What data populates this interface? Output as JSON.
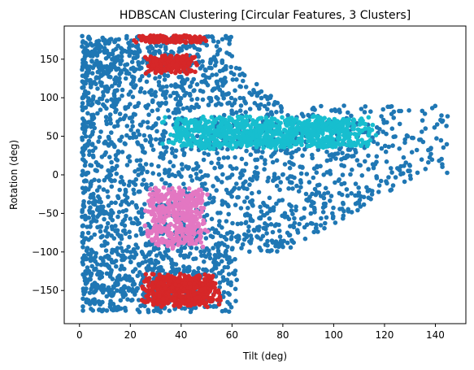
{
  "chart_data": {
    "type": "scatter",
    "title": "HDBSCAN Clustering [Circular Features, 3 Clusters]",
    "xlabel": "Tilt (deg)",
    "ylabel": "Rotation (deg)",
    "xlim": [
      -6,
      152
    ],
    "ylim": [
      -193,
      193
    ],
    "xticks": [
      0,
      20,
      40,
      60,
      80,
      100,
      120,
      140
    ],
    "yticks": [
      -150,
      -100,
      -50,
      0,
      50,
      100,
      150
    ],
    "xtick_labels": [
      "0",
      "20",
      "40",
      "60",
      "80",
      "100",
      "120",
      "140"
    ],
    "ytick_labels": [
      "−150",
      "−100",
      "−50",
      "0",
      "50",
      "100",
      "150"
    ],
    "grid": false,
    "legend": "none",
    "colors": {
      "noise": "#1f77b4",
      "cluster_1": "#d62728",
      "cluster_2": "#e377c2",
      "cluster_3": "#17becf"
    },
    "regions": [
      {
        "color": "cluster_1",
        "x_center": 36,
        "y_center": 176,
        "x_spread": 16,
        "y_spread": 5,
        "count": 140
      },
      {
        "color": "cluster_1",
        "x_center": 36,
        "y_center": 143,
        "x_spread": 11,
        "y_spread": 13,
        "count": 170
      },
      {
        "color": "cluster_1",
        "x_center": 40,
        "y_center": -150,
        "x_spread": 16,
        "y_spread": 22,
        "count": 520
      },
      {
        "color": "cluster_2",
        "x_center": 38,
        "y_center": -55,
        "x_spread": 13,
        "y_spread": 42,
        "count": 420
      },
      {
        "color": "cluster_3",
        "x_center": 75,
        "y_center": 55,
        "x_spread": 45,
        "y_spread": 22,
        "count": 900
      }
    ],
    "noise_region": {
      "x_range": [
        1,
        145
      ],
      "y_range": [
        -178,
        180
      ],
      "count": 2600
    }
  }
}
